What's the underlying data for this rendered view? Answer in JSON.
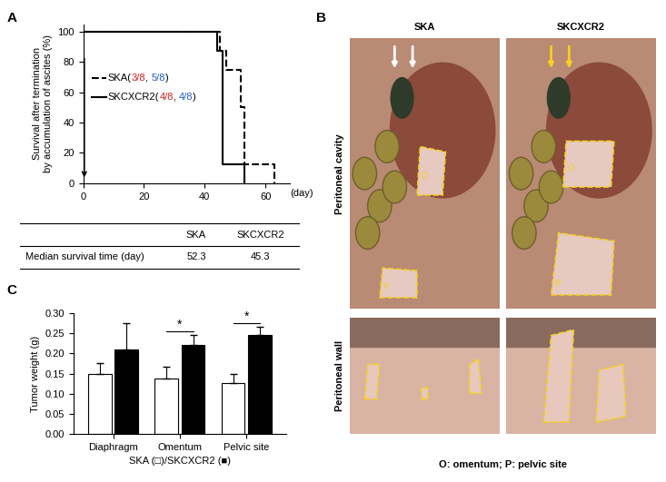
{
  "chart_data": [
    {
      "type": "survival_step",
      "panel_label": "A",
      "ylabel": "Survival after termination\nby accumulation of ascites (%)",
      "xlabel": "(day)",
      "xlim": [
        0,
        68
      ],
      "xticks": [
        0,
        20,
        40,
        60
      ],
      "ylim": [
        0,
        105
      ],
      "yticks": [
        0,
        20,
        40,
        60,
        80,
        100
      ],
      "series": [
        {
          "name": "SKA(3/8, 5/8)",
          "name_parts": [
            {
              "text": "SKA(",
              "color": "#000000"
            },
            {
              "text": "3/8",
              "color": "#d62020"
            },
            {
              "text": ", ",
              "color": "#000000"
            },
            {
              "text": "5/8",
              "color": "#1f5fbf"
            },
            {
              "text": ")",
              "color": "#000000"
            }
          ],
          "color": "#000000",
          "line_style": "dashed",
          "x": [
            0,
            45,
            47,
            52,
            53,
            63
          ],
          "values": [
            100,
            87.5,
            75,
            50,
            12.5,
            0
          ]
        },
        {
          "name": "SKCXCR2(4/8, 4/8)",
          "name_parts": [
            {
              "text": "SKCXCR2(",
              "color": "#000000"
            },
            {
              "text": "4/8",
              "color": "#d62020"
            },
            {
              "text": ", ",
              "color": "#000000"
            },
            {
              "text": "4/8",
              "color": "#1f5fbf"
            },
            {
              "text": ")",
              "color": "#000000"
            }
          ],
          "color": "#000000",
          "line_style": "solid",
          "x": [
            0,
            44,
            46,
            53
          ],
          "values": [
            100,
            87.5,
            12.5,
            0
          ]
        }
      ],
      "table": {
        "columns": [
          "SKA",
          "SKCXCR2"
        ],
        "rows": [
          {
            "label": "Median survival time (day)",
            "values": [
              52.3,
              45.3
            ]
          }
        ]
      }
    },
    {
      "type": "bar",
      "panel_label": "C",
      "categories": [
        "Diaphragm",
        "Omentum",
        "Pelvic site"
      ],
      "ylabel": "Tumor weight (g)",
      "xlabel": "SKA (□)/SKCXCR2 (■)",
      "ylim": [
        0,
        0.3
      ],
      "yticks": [
        {
          "value": 0.0,
          "label": "0.00"
        },
        {
          "value": 0.05,
          "label": "0.05"
        },
        {
          "value": 0.1,
          "label": "0.10"
        },
        {
          "value": 0.15,
          "label": "0.15"
        },
        {
          "value": 0.2,
          "label": "0.20"
        },
        {
          "value": 0.25,
          "label": "0.25"
        },
        {
          "value": 0.3,
          "label": "0.30"
        }
      ],
      "series": [
        {
          "color": "#ffffff",
          "values": [
            0.15,
            0.138,
            0.127
          ],
          "errors": [
            0.025,
            0.028,
            0.023
          ]
        },
        {
          "color": "#000000",
          "values": [
            0.21,
            0.222,
            0.245
          ],
          "errors": [
            0.065,
            0.025,
            0.022
          ]
        }
      ],
      "significance": [
        null,
        "*",
        "*"
      ]
    }
  ],
  "photo_panel": {
    "panel_label": "B",
    "columns": [
      "SKA",
      "SKCXCR2"
    ],
    "rows": [
      "Peritoneal cavity",
      "Peritoneal wall"
    ],
    "region_labels": [
      "O",
      "P"
    ],
    "caption": "O: omentum; P: pelvic site"
  }
}
